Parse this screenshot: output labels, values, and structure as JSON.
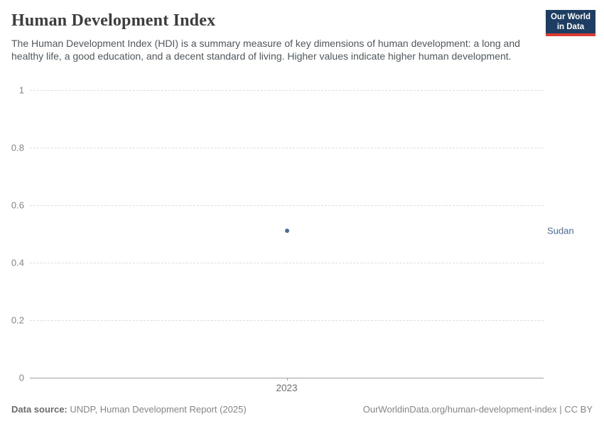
{
  "header": {
    "title": "Human Development Index",
    "subtitle": "The Human Development Index (HDI) is a summary measure of key dimensions of human development: a long and healthy life, a good education, and a decent standard of living. Higher values indicate higher human development."
  },
  "logo": {
    "line1": "Our World",
    "line2": "in Data",
    "bg_color": "#1d3d63",
    "bar_color": "#dc3b31"
  },
  "chart_data": {
    "type": "scatter",
    "title": "Human Development Index",
    "x": [
      2023
    ],
    "xtick_labels": [
      "2023"
    ],
    "series": [
      {
        "name": "Sudan",
        "values": [
          0.511
        ],
        "color": "#4c6a9c"
      }
    ],
    "xlabel": "",
    "ylabel": "",
    "ylim": [
      0,
      1
    ],
    "yticks": [
      0,
      0.2,
      0.4,
      0.6,
      0.8,
      1
    ],
    "ytick_labels": [
      "0",
      "0.2",
      "0.4",
      "0.6",
      "0.8",
      "1"
    ],
    "grid": "horizontal-dashed",
    "grid_color": "#dedede",
    "axis_color": "#a1a1a1",
    "legend_position": "right-of-plot"
  },
  "footer": {
    "source_label": "Data source:",
    "source_text": " UNDP, Human Development Report (2025)",
    "link_text": "OurWorldinData.org/human-development-index | CC BY"
  }
}
